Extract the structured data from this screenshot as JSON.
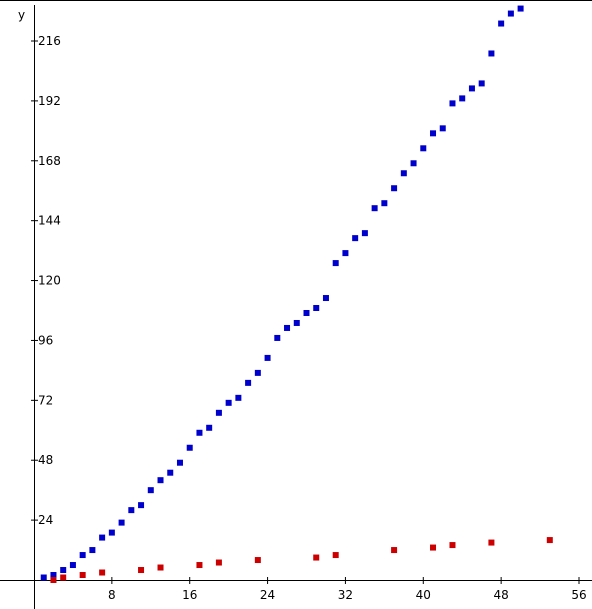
{
  "chart_data": {
    "type": "scatter",
    "title": "",
    "xlabel": "",
    "ylabel": "y",
    "xlim": [
      -1.5,
      57
    ],
    "ylim": [
      -10,
      230
    ],
    "x_ticks": [
      8,
      16,
      24,
      32,
      40,
      48,
      56
    ],
    "y_ticks": [
      24,
      48,
      72,
      96,
      120,
      144,
      168,
      192,
      216
    ],
    "grid": false,
    "legend": "none",
    "series": [
      {
        "color": "#0000cc",
        "points": [
          [
            1,
            1
          ],
          [
            2,
            2
          ],
          [
            3,
            4
          ],
          [
            4,
            6
          ],
          [
            5,
            10
          ],
          [
            6,
            12
          ],
          [
            7,
            17
          ],
          [
            8,
            19
          ],
          [
            9,
            23
          ],
          [
            10,
            28
          ],
          [
            11,
            30
          ],
          [
            12,
            36
          ],
          [
            13,
            40
          ],
          [
            14,
            43
          ],
          [
            15,
            47
          ],
          [
            16,
            53
          ],
          [
            17,
            59
          ],
          [
            18,
            61
          ],
          [
            19,
            67
          ],
          [
            20,
            71
          ],
          [
            21,
            73
          ],
          [
            22,
            79
          ],
          [
            23,
            83
          ],
          [
            24,
            89
          ],
          [
            25,
            97
          ],
          [
            26,
            101
          ],
          [
            27,
            103
          ],
          [
            28,
            107
          ],
          [
            29,
            109
          ],
          [
            30,
            113
          ],
          [
            31,
            127
          ],
          [
            32,
            131
          ],
          [
            33,
            137
          ],
          [
            34,
            139
          ],
          [
            35,
            149
          ],
          [
            36,
            151
          ],
          [
            37,
            157
          ],
          [
            38,
            163
          ],
          [
            39,
            167
          ],
          [
            40,
            173
          ],
          [
            41,
            179
          ],
          [
            42,
            181
          ],
          [
            43,
            191
          ],
          [
            44,
            193
          ],
          [
            45,
            197
          ],
          [
            46,
            199
          ],
          [
            47,
            211
          ],
          [
            48,
            223
          ],
          [
            49,
            227
          ],
          [
            50,
            229
          ]
        ]
      },
      {
        "color": "#cc0000",
        "points": [
          [
            2,
            0
          ],
          [
            3,
            1
          ],
          [
            5,
            2
          ],
          [
            7,
            3
          ],
          [
            11,
            4
          ],
          [
            13,
            5
          ],
          [
            17,
            6
          ],
          [
            19,
            7
          ],
          [
            23,
            8
          ],
          [
            29,
            9
          ],
          [
            31,
            10
          ],
          [
            37,
            12
          ],
          [
            41,
            13
          ],
          [
            43,
            14
          ],
          [
            47,
            15
          ],
          [
            53,
            16
          ]
        ]
      }
    ]
  }
}
